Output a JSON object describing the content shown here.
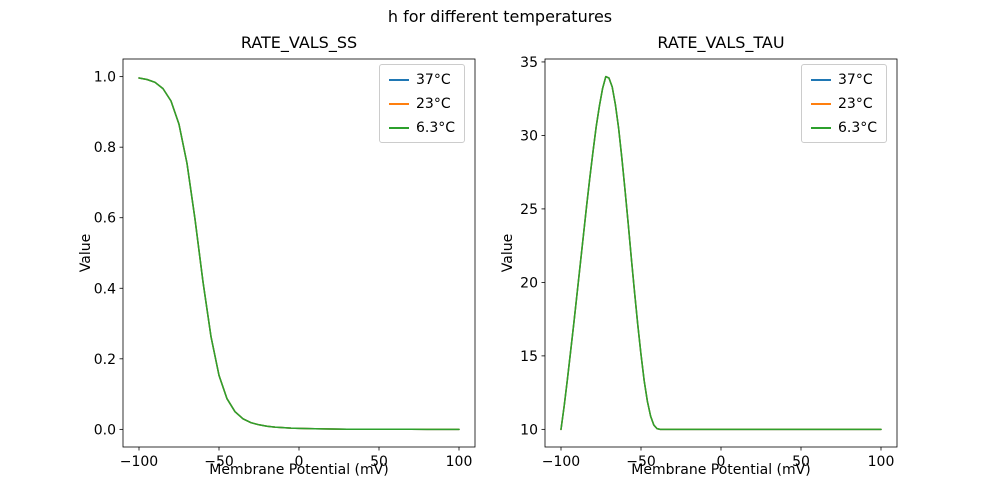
{
  "suptitle": "h for different temperatures",
  "chart_data": [
    {
      "type": "line",
      "title": "RATE_VALS_SS",
      "xlabel": "Membrane Potential (mV)",
      "ylabel": "Value",
      "xlim": [
        -110,
        110
      ],
      "ylim": [
        -0.05,
        1.05
      ],
      "grid": false,
      "legend_position": "upper right",
      "xticks": [
        -100,
        -50,
        0,
        50,
        100
      ],
      "xtick_labels": [
        "−100",
        "−50",
        "0",
        "50",
        "100"
      ],
      "yticks": [
        0.0,
        0.2,
        0.4,
        0.6,
        0.8,
        1.0
      ],
      "ytick_labels": [
        "0.0",
        "0.2",
        "0.4",
        "0.6",
        "0.8",
        "1.0"
      ],
      "x": [
        -100,
        -95,
        -90,
        -85,
        -80,
        -75,
        -70,
        -65,
        -60,
        -55,
        -50,
        -45,
        -40,
        -35,
        -30,
        -25,
        -20,
        -15,
        -10,
        -5,
        0,
        10,
        20,
        30,
        40,
        50,
        60,
        70,
        80,
        90,
        100
      ],
      "series": [
        {
          "name": "37°C",
          "color": "#1f77b4",
          "values": [
            0.996,
            0.992,
            0.984,
            0.966,
            0.931,
            0.865,
            0.754,
            0.596,
            0.418,
            0.263,
            0.153,
            0.087,
            0.05,
            0.03,
            0.019,
            0.013,
            0.009,
            0.0065,
            0.005,
            0.0037,
            0.0028,
            0.0016,
            0.0009,
            0.0005,
            0.0003,
            0.0002,
            0.0001,
            0.0001,
            0.0,
            0.0,
            0.0
          ]
        },
        {
          "name": "23°C",
          "color": "#ff7f0e",
          "values": [
            0.996,
            0.992,
            0.984,
            0.966,
            0.931,
            0.865,
            0.754,
            0.596,
            0.418,
            0.263,
            0.153,
            0.087,
            0.05,
            0.03,
            0.019,
            0.013,
            0.009,
            0.0065,
            0.005,
            0.0037,
            0.0028,
            0.0016,
            0.0009,
            0.0005,
            0.0003,
            0.0002,
            0.0001,
            0.0001,
            0.0,
            0.0,
            0.0
          ]
        },
        {
          "name": "6.3°C",
          "color": "#2ca02c",
          "values": [
            0.996,
            0.992,
            0.984,
            0.966,
            0.931,
            0.865,
            0.754,
            0.596,
            0.418,
            0.263,
            0.153,
            0.087,
            0.05,
            0.03,
            0.019,
            0.013,
            0.009,
            0.0065,
            0.005,
            0.0037,
            0.0028,
            0.0016,
            0.0009,
            0.0005,
            0.0003,
            0.0002,
            0.0001,
            0.0001,
            0.0,
            0.0,
            0.0
          ]
        }
      ]
    },
    {
      "type": "line",
      "title": "RATE_VALS_TAU",
      "xlabel": "Membrane Potential (mV)",
      "ylabel": "Value",
      "xlim": [
        -110,
        110
      ],
      "ylim": [
        8.8,
        35.2
      ],
      "grid": false,
      "legend_position": "upper right",
      "xticks": [
        -100,
        -50,
        0,
        50,
        100
      ],
      "xtick_labels": [
        "−100",
        "−50",
        "0",
        "50",
        "100"
      ],
      "yticks": [
        10,
        15,
        20,
        25,
        30,
        35
      ],
      "ytick_labels": [
        "10",
        "15",
        "20",
        "25",
        "30",
        "35"
      ],
      "x": [
        -100,
        -98,
        -96,
        -94,
        -92,
        -90,
        -88,
        -86,
        -84,
        -82,
        -80,
        -78,
        -76,
        -74,
        -72,
        -70,
        -68,
        -66,
        -64,
        -62,
        -60,
        -58,
        -56,
        -54,
        -52,
        -50,
        -48,
        -46,
        -44,
        -42,
        -40,
        -38,
        -36,
        -34,
        -30,
        -25,
        -20,
        -10,
        0,
        20,
        40,
        60,
        80,
        100
      ],
      "series": [
        {
          "name": "37°C",
          "color": "#1f77b4",
          "values": [
            10.0,
            11.6,
            13.4,
            15.3,
            17.2,
            19.2,
            21.2,
            23.2,
            25.2,
            27.1,
            28.9,
            30.6,
            32.0,
            33.2,
            34.0,
            33.9,
            33.3,
            32.1,
            30.5,
            28.5,
            26.3,
            24.0,
            21.6,
            19.3,
            17.1,
            15.1,
            13.3,
            11.9,
            10.9,
            10.3,
            10.05,
            10.0,
            10.0,
            10.0,
            10.0,
            10.0,
            10.0,
            10.0,
            10.0,
            10.0,
            10.0,
            10.0,
            10.0,
            10.0
          ]
        },
        {
          "name": "23°C",
          "color": "#ff7f0e",
          "values": [
            10.0,
            11.6,
            13.4,
            15.3,
            17.2,
            19.2,
            21.2,
            23.2,
            25.2,
            27.1,
            28.9,
            30.6,
            32.0,
            33.2,
            34.0,
            33.9,
            33.3,
            32.1,
            30.5,
            28.5,
            26.3,
            24.0,
            21.6,
            19.3,
            17.1,
            15.1,
            13.3,
            11.9,
            10.9,
            10.3,
            10.05,
            10.0,
            10.0,
            10.0,
            10.0,
            10.0,
            10.0,
            10.0,
            10.0,
            10.0,
            10.0,
            10.0,
            10.0,
            10.0
          ]
        },
        {
          "name": "6.3°C",
          "color": "#2ca02c",
          "values": [
            10.0,
            11.6,
            13.4,
            15.3,
            17.2,
            19.2,
            21.2,
            23.2,
            25.2,
            27.1,
            28.9,
            30.6,
            32.0,
            33.2,
            34.0,
            33.9,
            33.3,
            32.1,
            30.5,
            28.5,
            26.3,
            24.0,
            21.6,
            19.3,
            17.1,
            15.1,
            13.3,
            11.9,
            10.9,
            10.3,
            10.05,
            10.0,
            10.0,
            10.0,
            10.0,
            10.0,
            10.0,
            10.0,
            10.0,
            10.0,
            10.0,
            10.0,
            10.0,
            10.0
          ]
        }
      ]
    }
  ]
}
